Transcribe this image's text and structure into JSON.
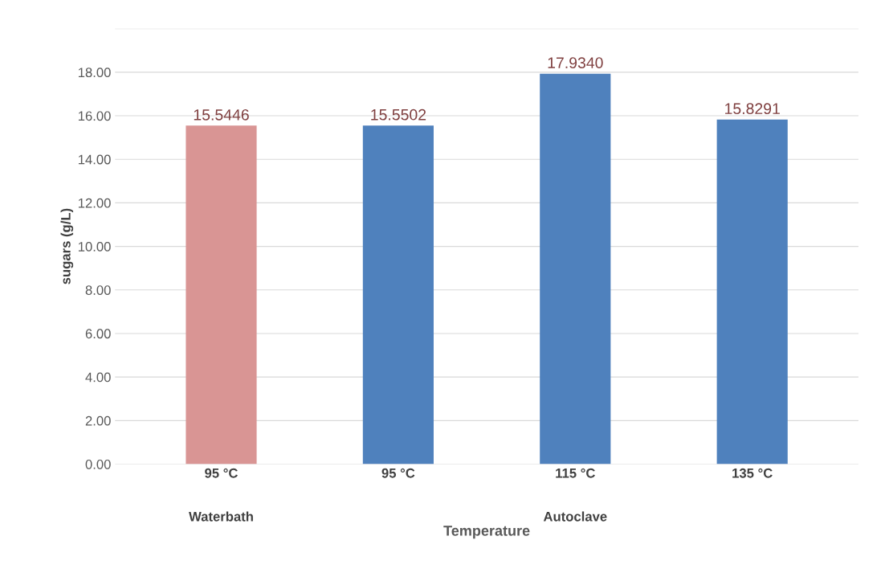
{
  "chart_data": {
    "type": "bar",
    "xlabel": "Temperature",
    "ylabel": "sugars (g/L)",
    "categories": [
      "95 °C",
      "95 °C",
      "115 °C",
      "135 °C"
    ],
    "values": [
      15.5446,
      15.5502,
      17.934,
      15.8291
    ],
    "colors": [
      "#d99594",
      "#4f81bd",
      "#4f81bd",
      "#4f81bd"
    ],
    "value_labels": [
      "15.5446",
      "15.5502",
      "17.9340",
      "15.8291"
    ],
    "ylim": [
      0,
      20
    ],
    "yticks": [
      {
        "value": 0,
        "label": "0.00"
      },
      {
        "value": 2,
        "label": "2.00"
      },
      {
        "value": 4,
        "label": "4.00"
      },
      {
        "value": 6,
        "label": "6.00"
      },
      {
        "value": 8,
        "label": "8.00"
      },
      {
        "value": 10,
        "label": "10.00"
      },
      {
        "value": 12,
        "label": "12.00"
      },
      {
        "value": 14,
        "label": "14.00"
      },
      {
        "value": 16,
        "label": "16.00"
      },
      {
        "value": 18,
        "label": "18.00"
      },
      {
        "value": 20,
        "label": null
      }
    ],
    "grid": "y",
    "annotations": [
      "Waterbath",
      "Autoclave"
    ]
  }
}
